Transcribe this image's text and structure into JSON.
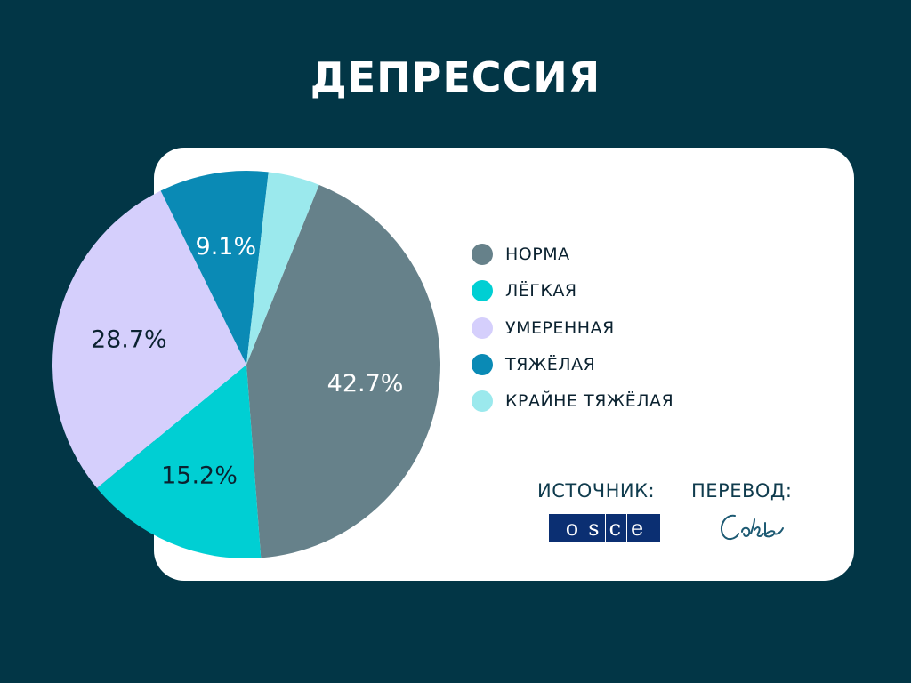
{
  "title": "ДЕПРЕССИЯ",
  "chart_data": {
    "type": "pie",
    "title": "ДЕПРЕССИЯ",
    "slices": [
      {
        "label": "НОРМА",
        "value": 42.7,
        "data_label": "42.7%",
        "color": "#66818a"
      },
      {
        "label": "ЛЁГКАЯ",
        "value": 15.2,
        "data_label": "15.2%",
        "color": "#00cfd3"
      },
      {
        "label": "УМЕРЕННАЯ",
        "value": 28.7,
        "data_label": "28.7%",
        "color": "#d5cffc"
      },
      {
        "label": "ТЯЖЁЛАЯ",
        "value": 9.1,
        "data_label": "9.1%",
        "color": "#0a8ab5"
      },
      {
        "label": "КРАЙНЕ ТЯЖЁЛАЯ",
        "value": 4.3,
        "data_label": "",
        "color": "#9be9ed"
      }
    ],
    "legend_position": "right"
  },
  "credits": {
    "source_label": "ИСТОЧНИК:",
    "source_logo_text": "OSCE",
    "translation_label": "ПЕРЕВОД:",
    "translation_signature": "Саль"
  },
  "colors": {
    "background": "#023646",
    "card": "#ffffff",
    "osce_blue": "#0b2f72",
    "signature": "#1d5a73"
  }
}
